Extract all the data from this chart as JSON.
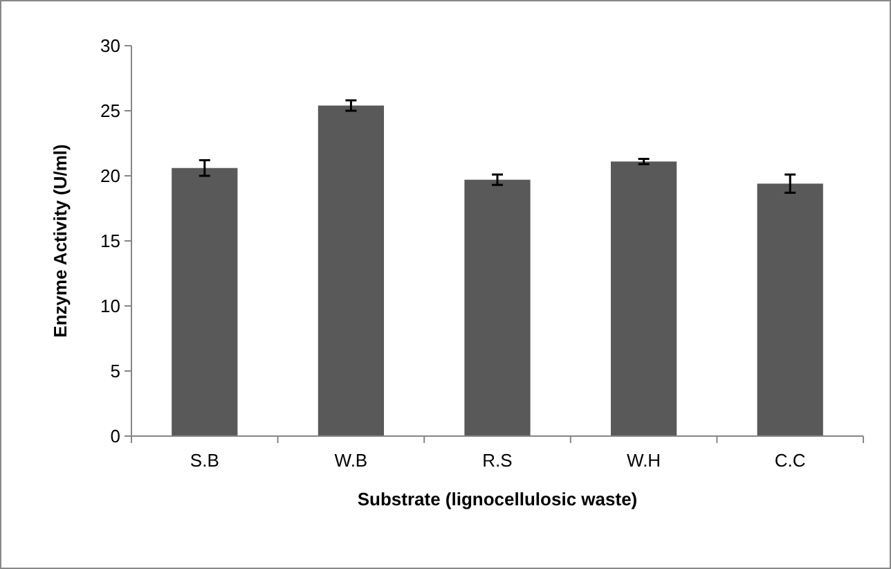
{
  "chart_data": {
    "type": "bar",
    "xlabel": "Substrate (lignocellulosic waste)",
    "ylabel": "Enzyme Activity (U/ml)",
    "categories": [
      "S.B",
      "W.B",
      "R.S",
      "W.H",
      "C.C"
    ],
    "values": [
      20.6,
      25.4,
      19.7,
      21.1,
      19.4
    ],
    "errors": [
      0.6,
      0.4,
      0.4,
      0.2,
      0.7
    ],
    "color": "#595959",
    "ylim": [
      0,
      30
    ],
    "yticks": [
      0,
      5,
      10,
      15,
      20,
      25,
      30
    ],
    "grid": false
  }
}
